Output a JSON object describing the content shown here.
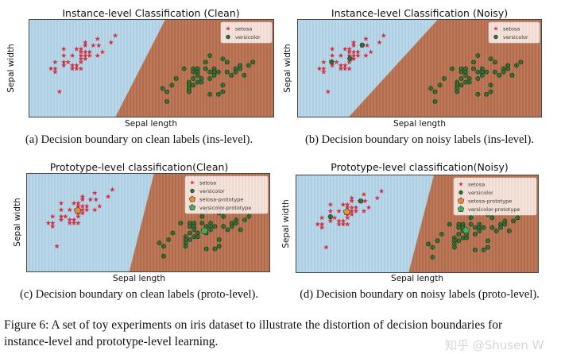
{
  "colors": {
    "region_setosa": "#b4d6e9",
    "region_versicolor": "#b8704f",
    "setosa": "#d42a3f",
    "versicolor": "#2f6a2a",
    "setosa_prototype": "#f08a2a",
    "versicolor_prototype": "#3fae4f"
  },
  "figure_caption": {
    "line1": "Figure 6: A set of toy experiments on iris dataset to illustrate the distortion of decision boundaries for",
    "line2": "instance-level and prototype-level learning."
  },
  "watermark": "知乎 @Shusen W",
  "chart_data": [
    {
      "type": "scatter",
      "id": "a",
      "title": "Instance-level Classification (Clean)",
      "xlabel": "Sepal length",
      "ylabel": "Sepal width",
      "subcaption": "(a) Decision boundary on clean labels (ins-level).",
      "legend": [
        "setosa",
        "versicolor"
      ],
      "legend_position": "top-right",
      "xlim": [
        4,
        8
      ],
      "ylim": [
        1.5,
        4.5
      ],
      "boundary": {
        "x_at_ymax": 6.21,
        "x_at_ymin": 5.39
      },
      "noisy_points": [],
      "prototypes": null
    },
    {
      "type": "scatter",
      "id": "b",
      "title": "Instance-level Classification (Noisy)",
      "xlabel": "Sepal length",
      "ylabel": "Sepal width",
      "subcaption": "(b) Decision boundary on noisy labels (ins-level).",
      "legend": [
        "setosa",
        "versicolor"
      ],
      "legend_position": "top-right",
      "xlim": [
        4,
        8
      ],
      "ylim": [
        1.5,
        4.5
      ],
      "boundary": {
        "x_at_ymax": 6.28,
        "x_at_ymin": 4.81
      },
      "noisy_points": [
        [
          4.55,
          3.22
        ],
        [
          4.85,
          3.32
        ],
        [
          5.05,
          3.73
        ]
      ],
      "prototypes": null
    },
    {
      "type": "scatter",
      "id": "c",
      "title": "Prototype-level classification(Clean)",
      "xlabel": "Sepal length",
      "ylabel": "Sepal width",
      "subcaption": "(c) Decision boundary on clean labels (proto-level).",
      "legend": [
        "setosa",
        "versicolor",
        "setosa-prototype",
        "versicolor-prototype"
      ],
      "legend_position": "top-right",
      "xlim": [
        4,
        8
      ],
      "ylim": [
        1.5,
        4.5
      ],
      "boundary": {
        "x_at_ymax": 6.08,
        "x_at_ymin": 5.67
      },
      "noisy_points": [],
      "prototypes": {
        "setosa": [
          4.83,
          3.39
        ],
        "versicolor": [
          6.91,
          2.78
        ]
      }
    },
    {
      "type": "scatter",
      "id": "d",
      "title": "Prototype-level classification(Noisy)",
      "xlabel": "Sepal length",
      "ylabel": "Sepal width",
      "subcaption": "(d) Decision boundary on noisy labels (proto-level).",
      "legend": [
        "setosa",
        "versicolor",
        "setosa-prototype",
        "versicolor-prototype"
      ],
      "legend_position": "top-right",
      "xlim": [
        4,
        8
      ],
      "ylim": [
        1.5,
        4.5
      ],
      "boundary": {
        "x_at_ymax": 6.26,
        "x_at_ymin": 5.84
      },
      "noisy_points": [
        [
          4.56,
          3.24
        ],
        [
          5.06,
          3.72
        ]
      ],
      "prototypes": {
        "setosa": [
          4.83,
          3.39
        ],
        "versicolor": [
          6.79,
          2.83
        ]
      }
    }
  ],
  "points": {
    "setosa": [
      [
        4.35,
        3.01
      ],
      [
        4.42,
        3.01
      ],
      [
        4.42,
        2.91
      ],
      [
        4.42,
        3.21
      ],
      [
        4.49,
        2.31
      ],
      [
        4.56,
        3.61
      ],
      [
        4.56,
        3.41
      ],
      [
        4.56,
        3.21
      ],
      [
        4.56,
        3.11
      ],
      [
        4.63,
        3.21
      ],
      [
        4.7,
        3.41
      ],
      [
        4.7,
        3.11
      ],
      [
        4.7,
        3.01
      ],
      [
        4.77,
        3.11
      ],
      [
        4.77,
        3.01
      ],
      [
        4.77,
        3.61
      ],
      [
        4.84,
        3.61
      ],
      [
        4.84,
        3.52
      ],
      [
        4.84,
        3.41
      ],
      [
        4.84,
        3.31
      ],
      [
        4.84,
        3.21
      ],
      [
        4.84,
        3.01
      ],
      [
        4.91,
        3.81
      ],
      [
        4.91,
        3.72
      ],
      [
        4.91,
        3.52
      ],
      [
        4.91,
        3.41
      ],
      [
        4.91,
        3.31
      ],
      [
        4.98,
        3.52
      ],
      [
        4.98,
        3.41
      ],
      [
        5.04,
        3.72
      ],
      [
        5.11,
        3.92
      ],
      [
        5.11,
        3.41
      ],
      [
        5.13,
        3.72
      ],
      [
        5.19,
        3.52
      ],
      [
        5.33,
        3.81
      ],
      [
        5.4,
        4.02
      ]
    ],
    "versicolor": [
      [
        6.17,
        2.41
      ],
      [
        6.24,
        2.31
      ],
      [
        6.24,
        2.01
      ],
      [
        6.32,
        2.51
      ],
      [
        6.39,
        2.71
      ],
      [
        6.52,
        3.01
      ],
      [
        6.6,
        2.6
      ],
      [
        6.6,
        2.51
      ],
      [
        6.6,
        2.41
      ],
      [
        6.6,
        2.31
      ],
      [
        6.67,
        3.01
      ],
      [
        6.67,
        2.91
      ],
      [
        6.67,
        2.71
      ],
      [
        6.67,
        2.51
      ],
      [
        6.74,
        3.01
      ],
      [
        6.74,
        2.91
      ],
      [
        6.74,
        2.81
      ],
      [
        6.74,
        2.6
      ],
      [
        6.8,
        2.71
      ],
      [
        6.8,
        2.6
      ],
      [
        6.87,
        3.21
      ],
      [
        6.87,
        3.01
      ],
      [
        6.94,
        3.41
      ],
      [
        6.94,
        2.91
      ],
      [
        6.94,
        2.71
      ],
      [
        6.94,
        2.23
      ],
      [
        7.01,
        3.01
      ],
      [
        7.01,
        2.91
      ],
      [
        7.01,
        2.81
      ],
      [
        7.08,
        2.91
      ],
      [
        7.08,
        2.23
      ],
      [
        7.15,
        3.31
      ],
      [
        7.15,
        2.51
      ],
      [
        7.15,
        2.31
      ],
      [
        7.22,
        3.21
      ],
      [
        7.22,
        2.91
      ],
      [
        7.29,
        2.81
      ],
      [
        7.36,
        3.01
      ],
      [
        7.36,
        2.91
      ],
      [
        7.43,
        3.11
      ],
      [
        7.43,
        3.01
      ],
      [
        7.5,
        2.81
      ],
      [
        7.57,
        3.11
      ],
      [
        7.64,
        3.21
      ]
    ]
  }
}
